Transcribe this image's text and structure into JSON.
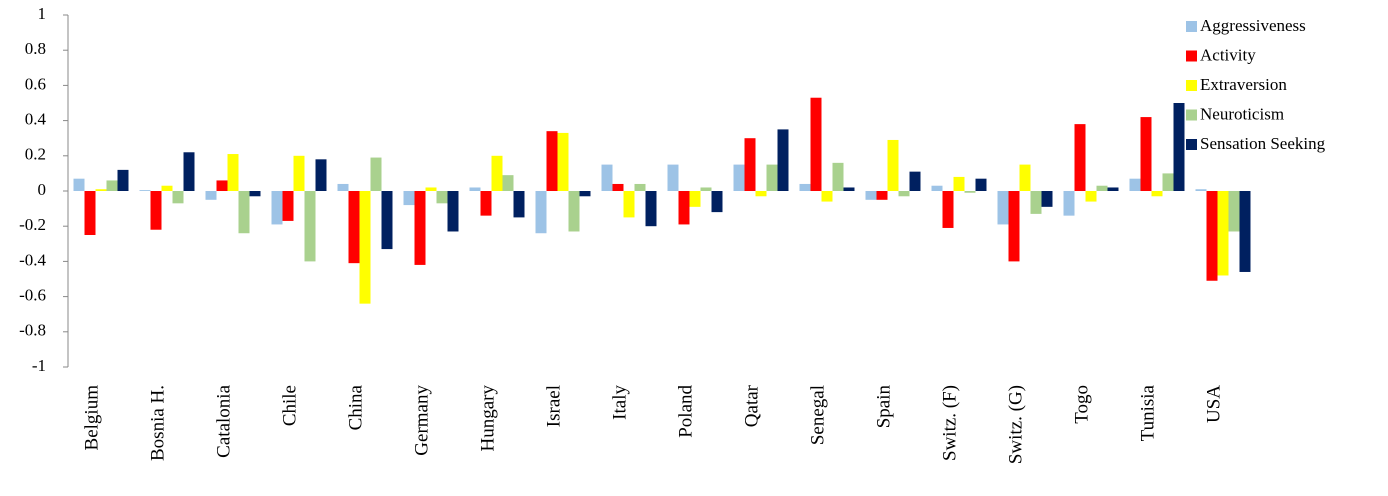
{
  "chart_data": {
    "type": "bar",
    "categories": [
      "Belgium",
      "Bosnia  H.",
      "Catalonia",
      "Chile",
      "China",
      "Germany",
      "Hungary",
      "Israel",
      "Italy",
      "Poland",
      "Qatar",
      "Senegal",
      "Spain",
      "Switz. (F)",
      "Switz. (G)",
      "Togo",
      "Tunisia",
      "USA"
    ],
    "series": [
      {
        "name": "Aggressiveness",
        "color": "#9dc3e6",
        "values": [
          0.07,
          0.005,
          -0.05,
          -0.19,
          0.04,
          -0.08,
          0.02,
          -0.24,
          0.15,
          0.15,
          0.15,
          0.04,
          -0.05,
          0.03,
          -0.19,
          -0.14,
          0.07,
          0.01
        ]
      },
      {
        "name": "Activity",
        "color": "#ff0000",
        "values": [
          -0.25,
          -0.22,
          0.06,
          -0.17,
          -0.41,
          -0.42,
          -0.14,
          0.34,
          0.04,
          -0.19,
          0.3,
          0.53,
          -0.05,
          -0.21,
          -0.4,
          0.38,
          0.42,
          -0.51
        ]
      },
      {
        "name": "Extraversion",
        "color": "#ffff00",
        "values": [
          0.01,
          0.03,
          0.21,
          0.2,
          -0.64,
          0.02,
          0.2,
          0.33,
          -0.15,
          -0.09,
          -0.03,
          -0.06,
          0.29,
          0.08,
          0.15,
          -0.06,
          -0.03,
          -0.48
        ]
      },
      {
        "name": "Neuroticism",
        "color": "#a9d18e",
        "values": [
          0.06,
          -0.07,
          -0.24,
          -0.4,
          0.19,
          -0.07,
          0.09,
          -0.23,
          0.04,
          0.02,
          0.15,
          0.16,
          -0.03,
          -0.01,
          -0.13,
          0.03,
          0.1,
          -0.23
        ]
      },
      {
        "name": "Sensation Seeking",
        "color": "#002060",
        "values": [
          0.12,
          0.22,
          -0.03,
          0.18,
          -0.33,
          -0.23,
          -0.15,
          -0.03,
          -0.2,
          -0.12,
          0.35,
          0.02,
          0.11,
          0.07,
          -0.09,
          0.02,
          0.5,
          -0.46
        ]
      }
    ],
    "ylim": [
      -1,
      1
    ],
    "yticks": [
      -1,
      -0.8,
      -0.6,
      -0.4,
      -0.2,
      0,
      0.2,
      0.4,
      0.6,
      0.8,
      1
    ],
    "legend": "top-right"
  }
}
